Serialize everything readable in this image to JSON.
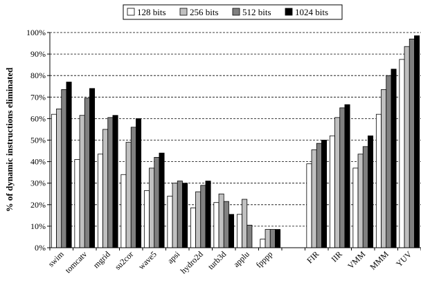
{
  "chart_data": {
    "type": "bar",
    "title": "",
    "xlabel": "",
    "ylabel": "% of dynamic instructions eliminated",
    "ylim": [
      0,
      100
    ],
    "yticks": [
      "0%",
      "10%",
      "20%",
      "30%",
      "40%",
      "50%",
      "60%",
      "70%",
      "80%",
      "90%",
      "100%"
    ],
    "grid": "horizontal dashed",
    "legend_position": "top",
    "categories": [
      "swim",
      "tomcatv",
      "mgrid",
      "su2cor",
      "wave5",
      "apsi",
      "hydro2d",
      "turb3d",
      "applu",
      "fpppp",
      "",
      "FIR",
      "IIR",
      "VMM",
      "MMM",
      "YUV"
    ],
    "series": [
      {
        "name": "128 bits",
        "color": "#ffffff",
        "values": [
          62,
          41,
          43.5,
          34,
          26.5,
          24,
          18.5,
          21,
          15.5,
          4,
          null,
          39,
          52,
          37,
          62,
          87.5
        ]
      },
      {
        "name": "256 bits",
        "color": "#c0c0c0",
        "values": [
          64.5,
          61.5,
          55,
          49,
          37,
          30,
          26,
          25,
          22.5,
          8.5,
          null,
          45.5,
          60.5,
          43.5,
          73.5,
          93.5
        ]
      },
      {
        "name": "512 bits",
        "color": "#808080",
        "values": [
          73.5,
          69.5,
          60.5,
          56,
          42,
          31,
          29,
          21.5,
          10.5,
          8.5,
          null,
          48.5,
          65,
          47,
          80,
          97
        ]
      },
      {
        "name": "1024 bits",
        "color": "#000000",
        "values": [
          77,
          74,
          61.5,
          60,
          44,
          30,
          31,
          15.5,
          null,
          8.5,
          null,
          50,
          66.5,
          52,
          83,
          98.5
        ]
      }
    ]
  }
}
